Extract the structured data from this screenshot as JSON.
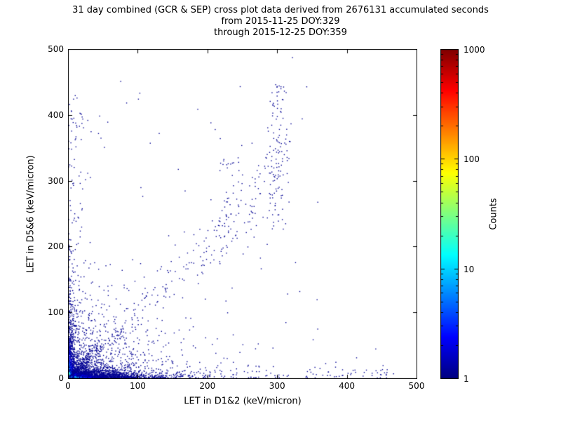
{
  "chart_data": {
    "type": "scatter",
    "title_lines": [
      "31 day combined (GCR & SEP) cross plot data derived from 2676131 accumulated seconds",
      "from 2015-11-25 DOY:329",
      "through 2015-12-25 DOY:359"
    ],
    "xlabel": "LET in D1&2 (keV/micron)",
    "ylabel": "LET in D5&6 (keV/micron)",
    "xlim": [
      0,
      500
    ],
    "ylim": [
      0,
      500
    ],
    "xticks": [
      0,
      100,
      200,
      300,
      400,
      500
    ],
    "yticks": [
      0,
      100,
      200,
      300,
      400,
      500
    ],
    "grid": false,
    "colormap": "jet",
    "point_color_low": "#000084",
    "colorbar": {
      "label": "Counts",
      "scale": "log",
      "min": 1,
      "max": 1000,
      "ticks": [
        1,
        10,
        100,
        1000
      ]
    },
    "seed": 20151125,
    "clusters": [
      {
        "name": "origin-core",
        "kind": "xy",
        "n": 1500,
        "x": {
          "type": "exp",
          "mean": 3.2,
          "clip": 70
        },
        "y": {
          "type": "exp",
          "mean": 3.2,
          "clip": 70
        },
        "color": {
          "mode": "glow",
          "amp": 1.25,
          "scale": 7.5
        }
      },
      {
        "name": "origin-spike",
        "kind": "xy",
        "n": 300,
        "x": {
          "type": "exp",
          "mean": 1.3,
          "clip": 20
        },
        "y": {
          "type": "exp",
          "mean": 1.3,
          "clip": 20
        },
        "color": {
          "mode": "glow",
          "amp": 1.45,
          "scale": 4
        }
      },
      {
        "name": "bottom-band",
        "kind": "xy",
        "n": 2300,
        "x": {
          "type": "exp",
          "mean": 42,
          "clip": 480
        },
        "y": {
          "type": "exp",
          "mean": 5,
          "clip": 480
        },
        "color": {
          "mode": "axis_glow",
          "amp": 0.95,
          "sx": 16,
          "sy": 4
        }
      },
      {
        "name": "left-band",
        "kind": "xy",
        "n": 750,
        "x": {
          "type": "exp",
          "mean": 4,
          "clip": 480
        },
        "y": {
          "type": "exp",
          "mean": 40,
          "clip": 470
        },
        "color": {
          "mode": "axis_glow",
          "amp": 0.8,
          "sx": 4.5,
          "sy": 22
        }
      },
      {
        "name": "lower-left-cloud",
        "kind": "xy",
        "n": 950,
        "x": {
          "type": "exp",
          "mean": 48,
          "clip": 490
        },
        "y": {
          "type": "exp",
          "mean": 40,
          "clip": 470
        },
        "color": {
          "mode": "flat",
          "t": 0.02
        }
      },
      {
        "name": "diagonal-streak",
        "kind": "diag",
        "n": 260,
        "t": {
          "type": "exp",
          "mean": 42,
          "clip": 210
        },
        "sx": 0.12,
        "sy": 0.14,
        "color": {
          "mode": "flat",
          "t": 0.02
        }
      },
      {
        "name": "mid-diagonal",
        "kind": "diag",
        "n": 60,
        "t": {
          "type": "uniform",
          "min": 120,
          "max": 260
        },
        "sx": 0.07,
        "sy": 0.09,
        "color": {
          "mode": "flat",
          "t": 0.02
        }
      },
      {
        "name": "upper-diagonal-band",
        "kind": "linear",
        "n": 85,
        "x": {
          "type": "uniform",
          "min": 185,
          "max": 320
        },
        "a": 1.3,
        "b": -65,
        "sd": 22,
        "color": {
          "mode": "flat",
          "t": 0.02
        }
      },
      {
        "name": "vertical-band-300",
        "kind": "xy",
        "n": 100,
        "x": {
          "type": "normal",
          "mean": 300,
          "sd": 7
        },
        "y": {
          "type": "uniform",
          "min": 225,
          "max": 445
        },
        "color": {
          "mode": "flat",
          "t": 0.02
        }
      },
      {
        "name": "vertical-streak-230",
        "kind": "xy",
        "n": 40,
        "x": {
          "type": "normal",
          "mean": 228,
          "sd": 6
        },
        "y": {
          "type": "uniform",
          "min": 190,
          "max": 335
        },
        "color": {
          "mode": "flat",
          "t": 0.02
        }
      },
      {
        "name": "sparse-bottom-wide",
        "kind": "xy",
        "n": 140,
        "x": {
          "type": "uniform",
          "min": 0,
          "max": 468
        },
        "y": {
          "type": "exp",
          "mean": 9,
          "clip": 400
        },
        "color": {
          "mode": "flat",
          "t": 0.02
        }
      },
      {
        "name": "far-right-pair",
        "kind": "xy",
        "n": 9,
        "x": {
          "type": "normal",
          "mean": 447,
          "sd": 7
        },
        "y": {
          "type": "exp",
          "mean": 9,
          "clip": 60
        },
        "color": {
          "mode": "flat",
          "t": 0.02
        }
      },
      {
        "name": "left-column-sparse",
        "kind": "xy",
        "n": 70,
        "x": {
          "type": "exp",
          "mean": 14,
          "clip": 150
        },
        "y": {
          "type": "uniform",
          "min": 90,
          "max": 430
        },
        "color": {
          "mode": "flat",
          "t": 0.02
        }
      },
      {
        "name": "left-high-cluster",
        "kind": "xy",
        "n": 16,
        "x": {
          "type": "normal",
          "mean": 15,
          "sd": 6
        },
        "y": {
          "type": "normal",
          "mean": 392,
          "sd": 11
        },
        "color": {
          "mode": "flat",
          "t": 0.02
        }
      },
      {
        "name": "scattered-outliers",
        "kind": "xy",
        "n": 60,
        "x": {
          "type": "uniform",
          "min": 0,
          "max": 360
        },
        "y": {
          "type": "uniform",
          "min": 0,
          "max": 460
        },
        "color": {
          "mode": "flat",
          "t": 0.02
        }
      },
      {
        "name": "notable-points",
        "kind": "fixed",
        "points": [
          [
            322,
            487
          ],
          [
            101,
            424
          ],
          [
            8,
            424
          ],
          [
            57,
            389
          ],
          [
            205,
            388
          ],
          [
            298,
            446
          ],
          [
            247,
            443
          ],
          [
            336,
            394
          ],
          [
            264,
            357
          ],
          [
            118,
            357
          ]
        ],
        "color": {
          "mode": "flat",
          "t": 0.02
        }
      }
    ]
  }
}
